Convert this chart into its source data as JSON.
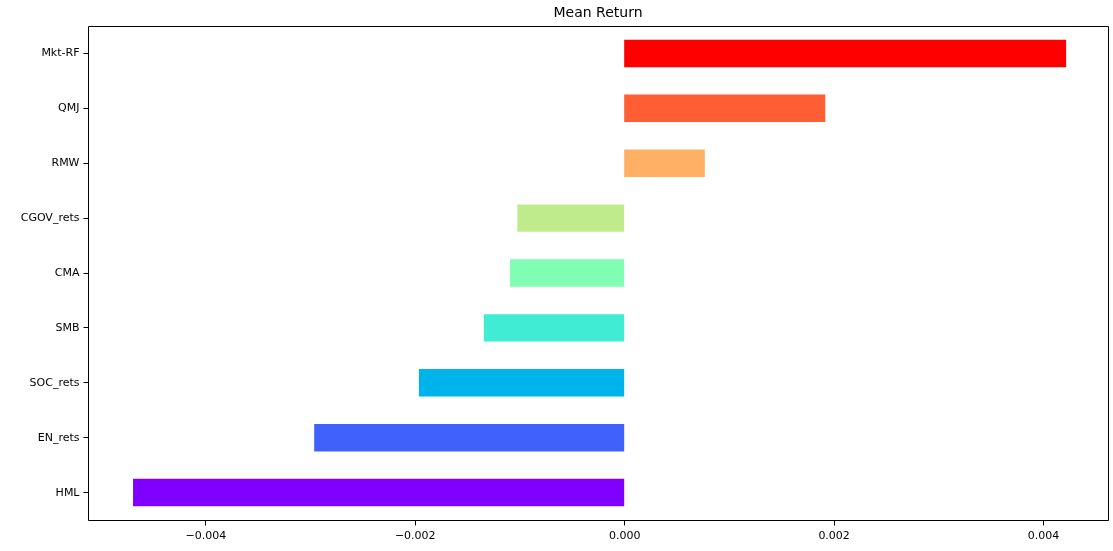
{
  "chart_data": {
    "type": "bar",
    "orientation": "horizontal",
    "title": "Mean Return",
    "categories": [
      "Mkt-RF",
      "QMJ",
      "RMW",
      "CGOV_rets",
      "CMA",
      "SMB",
      "SOC_rets",
      "EN_rets",
      "HML"
    ],
    "values": [
      0.00422,
      0.00192,
      0.00077,
      -0.00102,
      -0.00109,
      -0.00134,
      -0.00196,
      -0.00296,
      -0.00469
    ],
    "colors": [
      "#ff0000",
      "#ff5e34",
      "#ffb064",
      "#c0eb8d",
      "#80ffb4",
      "#40ecd4",
      "#00b4eb",
      "#4062fa",
      "#8000ff"
    ],
    "xlim": [
      -0.00512,
      0.00462
    ],
    "xticks": [
      {
        "value": -0.004,
        "label": "−0.004"
      },
      {
        "value": -0.002,
        "label": "−0.002"
      },
      {
        "value": 0,
        "label": "0.000"
      },
      {
        "value": 0.002,
        "label": "0.002"
      },
      {
        "value": 0.004,
        "label": "0.004"
      }
    ],
    "grid": false
  }
}
